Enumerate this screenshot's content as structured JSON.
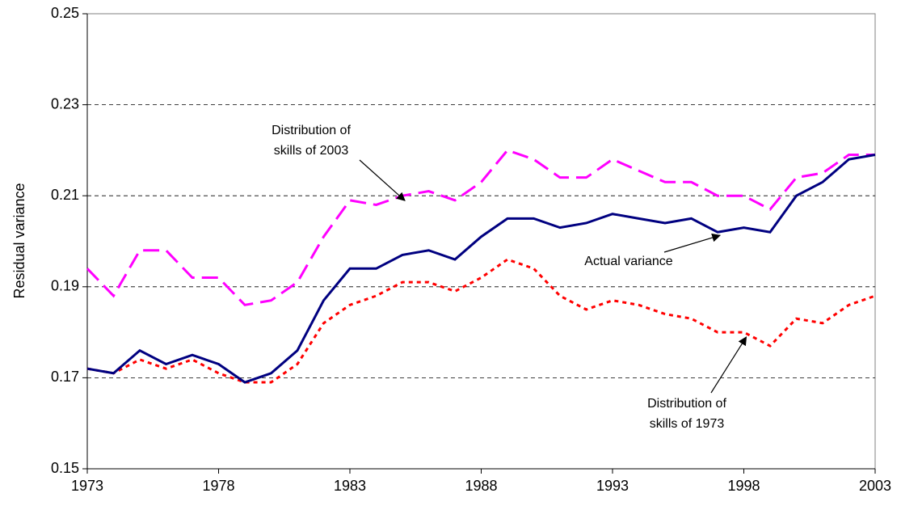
{
  "chart_data": {
    "type": "line",
    "y_label": "Residual variance",
    "x": [
      1973,
      1974,
      1975,
      1976,
      1977,
      1978,
      1979,
      1980,
      1981,
      1982,
      1983,
      1984,
      1985,
      1986,
      1987,
      1988,
      1989,
      1990,
      1991,
      1992,
      1993,
      1994,
      1995,
      1996,
      1997,
      1998,
      1999,
      2000,
      2001,
      2002,
      2003
    ],
    "series": [
      {
        "color": "#ff00ff",
        "dash": "dashed",
        "values": [
          0.194,
          0.188,
          0.198,
          0.198,
          0.192,
          0.192,
          0.186,
          0.187,
          0.191,
          0.201,
          0.209,
          0.208,
          0.21,
          0.211,
          0.209,
          0.213,
          0.22,
          0.218,
          0.214,
          0.214,
          0.218,
          0.2155,
          0.213,
          0.213,
          0.21,
          0.21,
          0.207,
          0.214,
          0.215,
          0.219,
          0.219
        ]
      },
      {
        "color": "#ff0000",
        "dash": "dotted",
        "values": [
          0.172,
          0.171,
          0.174,
          0.172,
          0.174,
          0.171,
          0.169,
          0.169,
          0.173,
          0.182,
          0.186,
          0.188,
          0.191,
          0.191,
          0.189,
          0.192,
          0.196,
          0.194,
          0.188,
          0.185,
          0.187,
          0.186,
          0.184,
          0.183,
          0.18,
          0.18,
          0.177,
          0.183,
          0.182,
          0.186,
          0.188
        ]
      },
      {
        "color": "#000080",
        "dash": "solid",
        "values": [
          0.172,
          0.171,
          0.176,
          0.173,
          0.175,
          0.173,
          0.169,
          0.171,
          0.176,
          0.187,
          0.194,
          0.194,
          0.197,
          0.198,
          0.196,
          0.201,
          0.205,
          0.205,
          0.203,
          0.204,
          0.206,
          0.205,
          0.204,
          0.205,
          0.202,
          0.203,
          0.202,
          0.21,
          0.213,
          0.218,
          0.219
        ]
      }
    ],
    "annotations": [
      {
        "lines": [
          "Distribution of",
          "skills of 2003"
        ]
      },
      {
        "lines": [
          "Actual variance"
        ]
      },
      {
        "lines": [
          "Distribution of",
          "skills of 1973"
        ]
      }
    ],
    "xlim": [
      1973,
      2003
    ],
    "xticks": [
      1973,
      1978,
      1983,
      1988,
      1993,
      1998,
      2003
    ],
    "ylim": [
      0.15,
      0.25
    ],
    "yticks": [
      0.15,
      0.17,
      0.19,
      0.21,
      0.23,
      0.25
    ],
    "grid": true
  }
}
